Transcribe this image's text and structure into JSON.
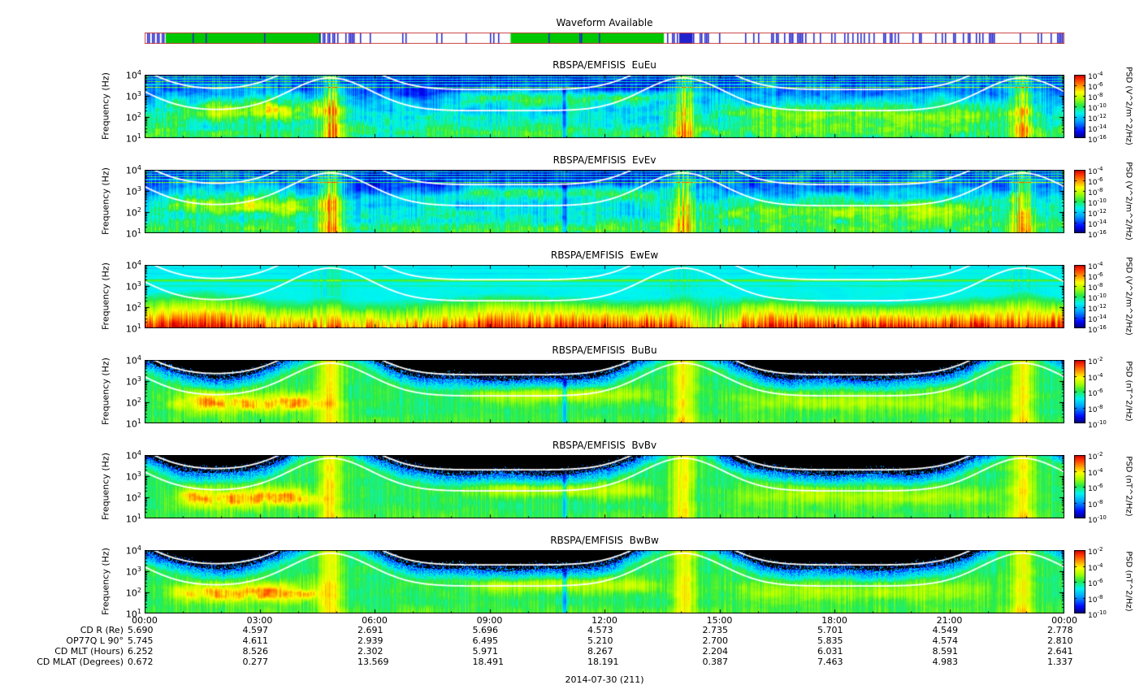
{
  "figure": {
    "date_label": "2014-07-30 (211)",
    "bg_color": "#ffffff"
  },
  "waveform": {
    "title": "Waveform Available",
    "green_color": "#00c800",
    "tick_color": "#2222cc",
    "border_color": "#cc4444",
    "green_blocks_hours": [
      [
        0.55,
        4.6
      ],
      [
        9.55,
        13.55
      ]
    ],
    "solid_blocks_hours": [
      [
        13.95,
        14.3
      ]
    ]
  },
  "axes": {
    "ylabel": "Frequency (Hz)",
    "y_tick_exponents": [
      4,
      3,
      2,
      1
    ],
    "x_ticks": [
      "00:00",
      "03:00",
      "06:00",
      "09:00",
      "12:00",
      "15:00",
      "18:00",
      "21:00",
      "00:00"
    ],
    "hours_span": 24
  },
  "panels": [
    {
      "title": "RBSPA/EMFISIS  EuEu",
      "kind": "E1",
      "seed": 1,
      "cb_label": "PSD (V^2/m^2/Hz)",
      "cb_exponents": [
        -4,
        -6,
        -8,
        -10,
        -12,
        -14,
        -16
      ]
    },
    {
      "title": "RBSPA/EMFISIS  EvEv",
      "kind": "E1",
      "seed": 2,
      "cb_label": "PSD (V^2/m^2/Hz)",
      "cb_exponents": [
        -4,
        -6,
        -8,
        -10,
        -12,
        -14,
        -16
      ]
    },
    {
      "title": "RBSPA/EMFISIS  EwEw",
      "kind": "E2",
      "seed": 3,
      "cb_label": "PSD (V^2/m^2/Hz)",
      "cb_exponents": [
        -4,
        -6,
        -8,
        -10,
        -12,
        -14,
        -16
      ]
    },
    {
      "title": "RBSPA/EMFISIS  BuBu",
      "kind": "B",
      "seed": 4,
      "cb_label": "PSD (nT^2/Hz)",
      "cb_exponents": [
        -2,
        -4,
        -6,
        -8,
        -10
      ]
    },
    {
      "title": "RBSPA/EMFISIS  BvBv",
      "kind": "B",
      "seed": 5,
      "cb_label": "PSD (nT^2/Hz)",
      "cb_exponents": [
        -2,
        -4,
        -6,
        -8,
        -10
      ]
    },
    {
      "title": "RBSPA/EMFISIS  BwBw",
      "kind": "B",
      "seed": 6,
      "cb_label": "PSD (nT^2/Hz)",
      "cb_exponents": [
        -2,
        -4,
        -6,
        -8,
        -10
      ]
    }
  ],
  "ephemeris": {
    "rows": [
      {
        "label": "CD R (Re)",
        "values": [
          "5.690",
          "4.597",
          "2.691",
          "5.696",
          "4.573",
          "2.735",
          "5.701",
          "4.549",
          "2.778"
        ]
      },
      {
        "label": "OP77Q L 90°",
        "values": [
          "5.745",
          "4.611",
          "2.939",
          "6.495",
          "5.210",
          "2.700",
          "5.835",
          "4.574",
          "2.810"
        ]
      },
      {
        "label": "CD MLT (Hours)",
        "values": [
          "6.252",
          "8.526",
          "2.302",
          "5.971",
          "8.267",
          "2.204",
          "6.031",
          "8.591",
          "2.641"
        ]
      },
      {
        "label": "CD MLAT (Degrees)",
        "values": [
          "0.672",
          "0.277",
          "13.569",
          "18.491",
          "18.191",
          "0.387",
          "7.463",
          "4.983",
          "1.337"
        ]
      }
    ]
  },
  "orbit": {
    "perigee_hours": [
      -1.1,
      4.85,
      14.05,
      22.9
    ],
    "fce_log_base": 3.3,
    "fce_log_amp": 1.55,
    "fce_width_hours": 1.5
  },
  "chart_data": {
    "type": "heatmap",
    "title": "RBSPA/EMFISIS wave power spectrograms",
    "date": "2014-07-30 (211)",
    "x_axis": {
      "ticks": [
        "00:00",
        "03:00",
        "06:00",
        "09:00",
        "12:00",
        "15:00",
        "18:00",
        "21:00",
        "00:00"
      ],
      "range_hours": [
        0,
        24
      ]
    },
    "panels": [
      {
        "title": "RBSPA/EMFISIS  EuEu",
        "ylabel": "Frequency (Hz)",
        "y_range_hz": [
          10,
          10000
        ],
        "y_scale": "log",
        "colorbar_label": "PSD (V^2/m^2/Hz)",
        "colorbar_range": [
          1e-16,
          0.0001
        ]
      },
      {
        "title": "RBSPA/EMFISIS  EvEv",
        "ylabel": "Frequency (Hz)",
        "y_range_hz": [
          10,
          10000
        ],
        "y_scale": "log",
        "colorbar_label": "PSD (V^2/m^2/Hz)",
        "colorbar_range": [
          1e-16,
          0.0001
        ]
      },
      {
        "title": "RBSPA/EMFISIS  EwEw",
        "ylabel": "Frequency (Hz)",
        "y_range_hz": [
          10,
          10000
        ],
        "y_scale": "log",
        "colorbar_label": "PSD (V^2/m^2/Hz)",
        "colorbar_range": [
          1e-16,
          0.0001
        ]
      },
      {
        "title": "RBSPA/EMFISIS  BuBu",
        "ylabel": "Frequency (Hz)",
        "y_range_hz": [
          10,
          10000
        ],
        "y_scale": "log",
        "colorbar_label": "PSD (nT^2/Hz)",
        "colorbar_range": [
          1e-10,
          0.01
        ]
      },
      {
        "title": "RBSPA/EMFISIS  BvBv",
        "ylabel": "Frequency (Hz)",
        "y_range_hz": [
          10,
          10000
        ],
        "y_scale": "log",
        "colorbar_label": "PSD (nT^2/Hz)",
        "colorbar_range": [
          1e-10,
          0.01
        ]
      },
      {
        "title": "RBSPA/EMFISIS  BwBw",
        "ylabel": "Frequency (Hz)",
        "y_range_hz": [
          10,
          10000
        ],
        "y_scale": "log",
        "colorbar_label": "PSD (nT^2/Hz)",
        "colorbar_range": [
          1e-10,
          0.01
        ]
      }
    ],
    "overlays": [
      "white curve: upper characteristic frequency line peaking near perigee (~04:50, ~14:05, ~22:50)",
      "white curve: lower line one decade below the upper line"
    ],
    "waveform_available": {
      "green_intervals_hours": [
        [
          0.55,
          4.6
        ],
        [
          9.55,
          13.55
        ]
      ]
    },
    "ephemeris_table": {
      "columns_hours": [
        0,
        3,
        6,
        9,
        12,
        15,
        18,
        21,
        24
      ],
      "rows": [
        {
          "label": "CD R (Re)",
          "values": [
            5.69,
            4.597,
            2.691,
            5.696,
            4.573,
            2.735,
            5.701,
            4.549,
            2.778
          ]
        },
        {
          "label": "OP77Q L 90°",
          "values": [
            5.745,
            4.611,
            2.939,
            6.495,
            5.21,
            2.7,
            5.835,
            4.574,
            2.81
          ]
        },
        {
          "label": "CD MLT (Hours)",
          "values": [
            6.252,
            8.526,
            2.302,
            5.971,
            8.267,
            2.204,
            6.031,
            8.591,
            2.641
          ]
        },
        {
          "label": "CD MLAT (Degrees)",
          "values": [
            0.672,
            0.277,
            13.569,
            18.491,
            18.191,
            0.387,
            7.463,
            4.983,
            1.337
          ]
        }
      ]
    }
  }
}
